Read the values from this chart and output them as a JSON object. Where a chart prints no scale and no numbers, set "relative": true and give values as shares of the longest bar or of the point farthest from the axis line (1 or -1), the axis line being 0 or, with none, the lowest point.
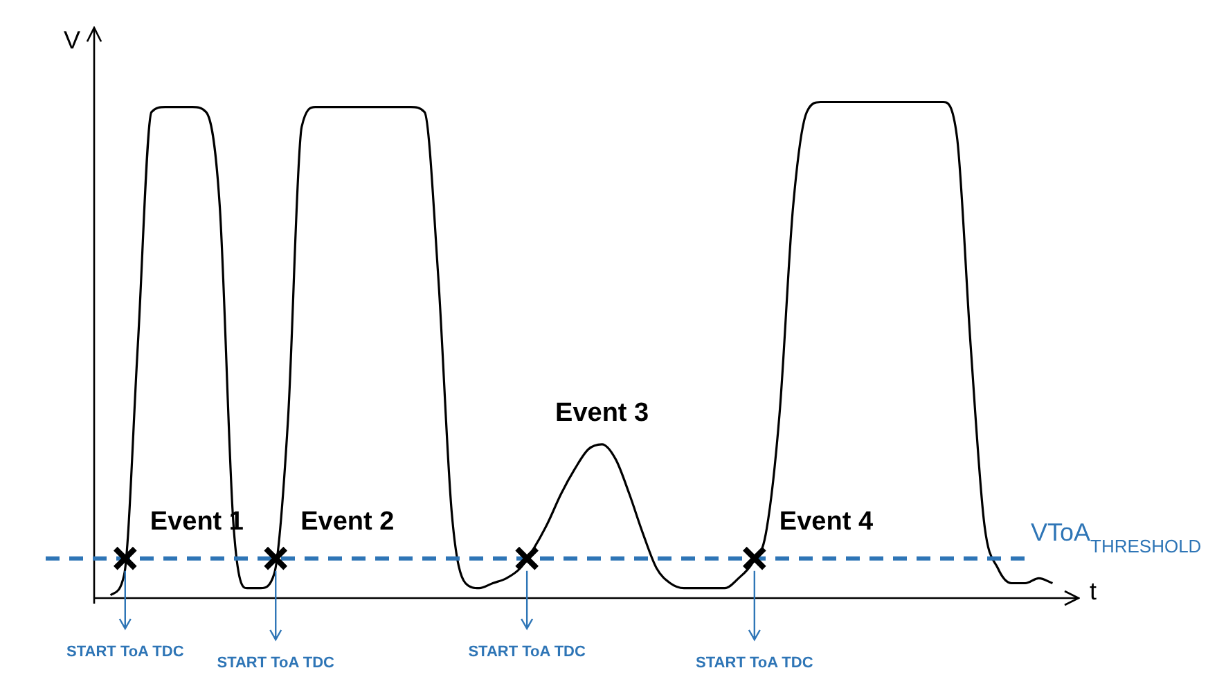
{
  "chart_data": {
    "type": "line",
    "relative": true,
    "xlabel": "t",
    "ylabel": "V",
    "marker": "none",
    "legend": false,
    "categories": [
      null,
      null,
      null,
      null,
      null,
      null,
      null,
      null,
      null,
      null,
      null,
      null,
      null,
      null,
      null,
      null,
      null,
      null,
      null,
      null,
      null,
      null,
      null,
      null,
      null,
      null,
      null,
      null,
      null,
      null,
      null,
      null,
      null,
      null,
      null,
      null,
      null,
      null,
      null,
      null,
      null,
      null,
      null,
      null,
      null,
      null,
      null,
      null,
      null,
      null,
      null,
      null,
      null,
      null,
      null,
      null,
      null,
      null,
      null,
      null,
      null,
      null,
      null,
      null,
      null,
      null,
      null,
      null,
      null,
      null
    ],
    "series": [
      {
        "color": "#000000",
        "values": [
          0.006,
          0.047,
          0.51,
          0.98,
          0.99,
          0.99,
          0.99,
          0.98,
          0.79,
          0.15,
          0.02,
          0.02,
          0.05,
          0.36,
          0.95,
          0.99,
          0.99,
          0.99,
          0.99,
          0.99,
          0.99,
          0.99,
          0.99,
          0.98,
          0.65,
          0.17,
          0.03,
          0.02,
          0.03,
          0.04,
          0.06,
          0.1,
          0.15,
          0.21,
          0.26,
          0.3,
          0.31,
          0.28,
          0.21,
          0.13,
          0.06,
          0.03,
          0.02,
          0.02,
          0.02,
          0.02,
          0.04,
          0.07,
          0.13,
          0.37,
          0.79,
          0.98,
          1,
          1,
          1,
          1,
          1,
          1,
          1,
          1,
          1,
          1,
          0.93,
          0.51,
          0.15,
          0.06,
          0.03,
          0.03,
          0.04,
          0.03
        ]
      }
    ],
    "ref_lines": [
      {
        "axis": "y",
        "value": 0.08,
        "label": "VToA$_{THRESHOLD}$",
        "color": "#2e75b6",
        "line_style": "dashed"
      }
    ],
    "annotations": [
      "Event 1",
      "Event 2",
      "Event 3",
      "Event 4",
      "START ToA TDC",
      "START ToA TDC",
      "START ToA TDC",
      "START ToA TDC"
    ]
  }
}
